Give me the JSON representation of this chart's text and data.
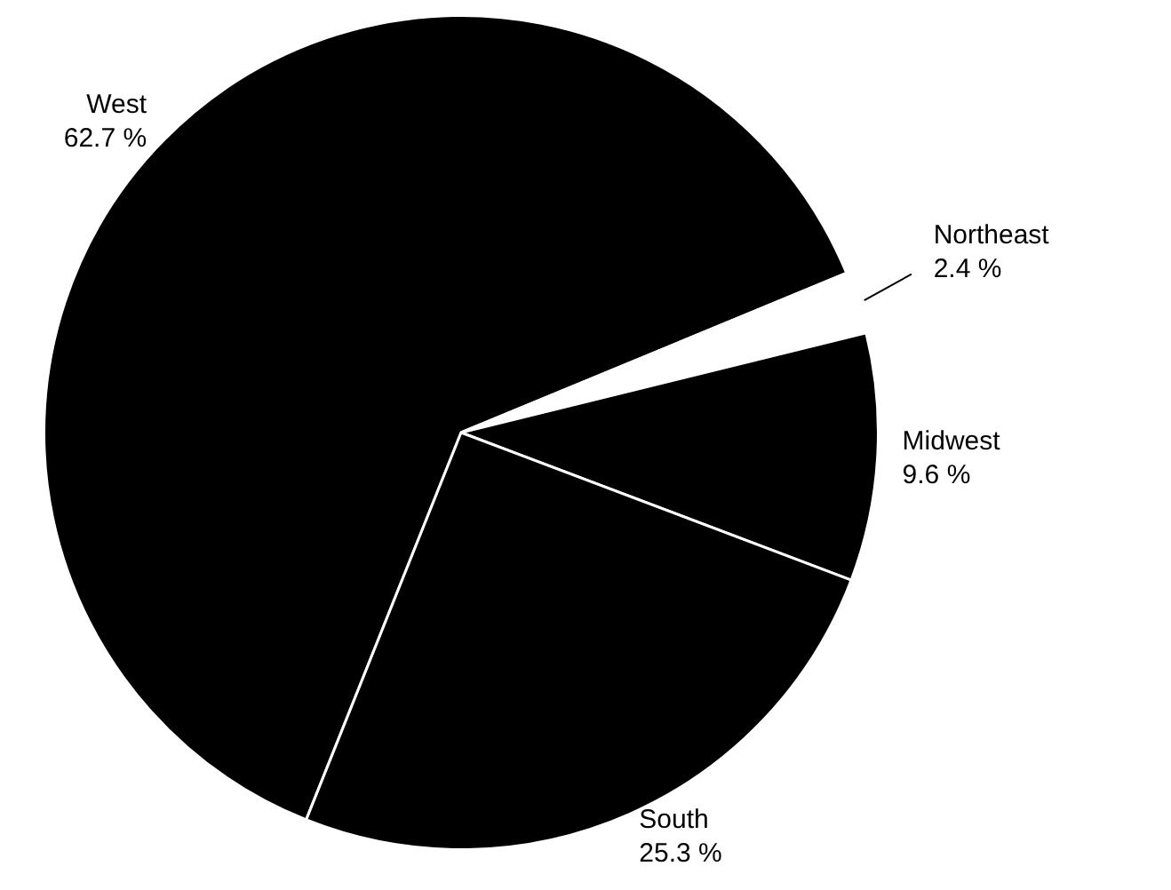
{
  "chart_data": {
    "type": "pie",
    "categories": [
      "West",
      "Northeast",
      "Midwest",
      "South"
    ],
    "values": [
      62.7,
      2.4,
      9.6,
      25.3
    ],
    "value_labels": [
      "62.7 %",
      "2.4 %",
      "9.6 %",
      "25.3 %"
    ],
    "colors": [
      "#000000",
      "#ffffff",
      "#000000",
      "#000000"
    ],
    "legend": false
  }
}
